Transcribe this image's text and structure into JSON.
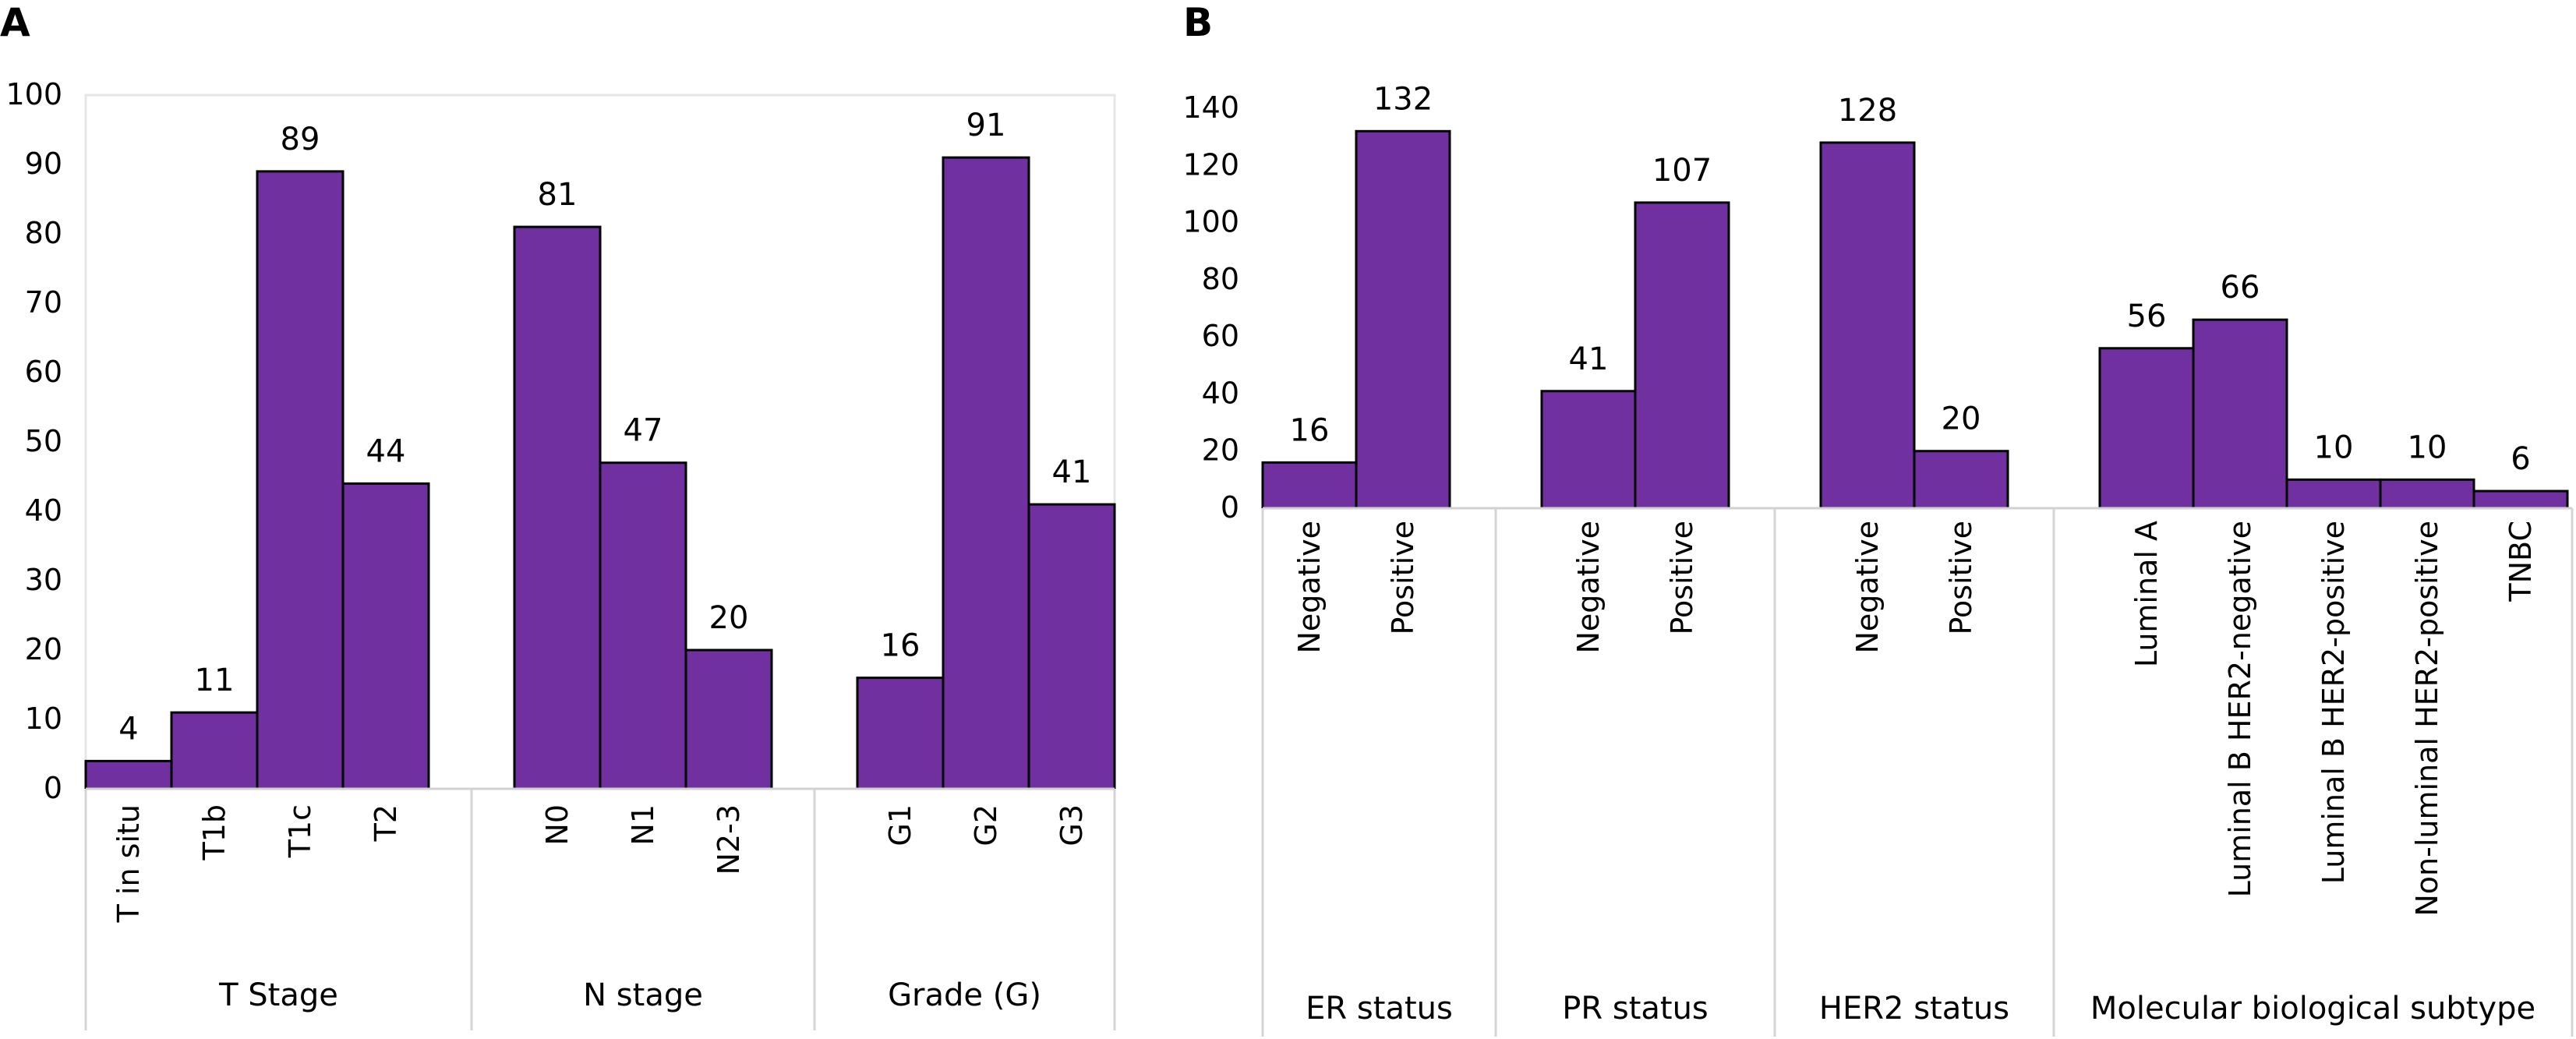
{
  "chart_data": [
    {
      "panel_label": "A",
      "type": "bar",
      "ylim": [
        0,
        100
      ],
      "y_ticks": [
        0,
        10,
        20,
        30,
        40,
        50,
        60,
        70,
        80,
        90,
        100
      ],
      "grid": false,
      "bar_color": "#7030a0",
      "groups": [
        {
          "label": "T Stage",
          "categories": [
            "T in situ",
            "T1b",
            "T1c",
            "T2"
          ],
          "values": [
            4,
            11,
            89,
            44
          ]
        },
        {
          "label": "N stage",
          "categories": [
            "N0",
            "N1",
            "N2-3"
          ],
          "values": [
            81,
            47,
            20
          ]
        },
        {
          "label": "Grade (G)",
          "categories": [
            "G1",
            "G2",
            "G3"
          ],
          "values": [
            16,
            91,
            41
          ]
        }
      ]
    },
    {
      "panel_label": "B",
      "type": "bar",
      "ylim": [
        0,
        140
      ],
      "y_ticks": [
        0,
        20,
        40,
        60,
        80,
        100,
        120,
        140
      ],
      "grid": false,
      "bar_color": "#7030a0",
      "groups": [
        {
          "label": "ER status",
          "categories": [
            "Negative",
            "Positive"
          ],
          "values": [
            16,
            132
          ]
        },
        {
          "label": "PR status",
          "categories": [
            "Negative",
            "Positive"
          ],
          "values": [
            41,
            107
          ]
        },
        {
          "label": "HER2 status",
          "categories": [
            "Negative",
            "Positive"
          ],
          "values": [
            128,
            20
          ]
        },
        {
          "label": "Molecular biological subtype",
          "categories": [
            "Luminal A",
            "Luminal B HER2-negative",
            "Luminal B HER2-positive",
            "Non-luminal HER2-positive",
            "TNBC"
          ],
          "values": [
            56,
            66,
            10,
            10,
            6
          ]
        }
      ]
    }
  ]
}
